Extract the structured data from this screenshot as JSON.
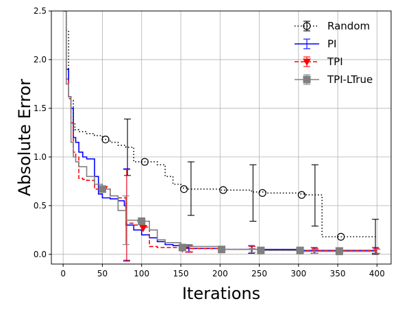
{
  "chart_data": {
    "type": "line",
    "xlabel": "Iterations",
    "ylabel": "Absolute Error",
    "xlim": [
      -15,
      418
    ],
    "ylim": [
      -0.1,
      2.5
    ],
    "xticks": [
      0,
      50,
      100,
      150,
      200,
      250,
      300,
      350,
      400
    ],
    "xtick_labels": [
      "0",
      "50",
      "100",
      "150",
      "200",
      "250",
      "300",
      "350",
      "400"
    ],
    "yticks": [
      0.0,
      0.5,
      1.0,
      1.5,
      2.0,
      2.5
    ],
    "ytick_labels": [
      "0.0",
      "0.5",
      "1.0",
      "1.5",
      "2.0",
      "2.5"
    ],
    "grid": true,
    "legend_position": "top-right",
    "series": [
      {
        "name": "Random",
        "color": "#000000",
        "line_style": "dotted",
        "marker": "circle-open",
        "x": [
          1,
          4,
          7,
          10,
          13,
          15,
          20,
          30,
          40,
          50,
          60,
          70,
          80,
          90,
          100,
          110,
          120,
          130,
          140,
          150,
          160,
          180,
          200,
          220,
          240,
          260,
          280,
          300,
          310,
          320,
          330,
          340,
          350,
          360,
          370,
          380,
          390,
          400
        ],
        "y": [
          2.5,
          2.3,
          1.62,
          1.58,
          1.35,
          1.28,
          1.26,
          1.24,
          1.22,
          1.18,
          1.15,
          1.12,
          1.1,
          0.95,
          0.95,
          0.95,
          0.92,
          0.8,
          0.72,
          0.68,
          0.67,
          0.67,
          0.66,
          0.66,
          0.64,
          0.63,
          0.63,
          0.62,
          0.61,
          0.61,
          0.18,
          0.18,
          0.18,
          0.18,
          0.18,
          0.18,
          0.18,
          0.18
        ],
        "marker_points": [
          {
            "x": 54,
            "y": 1.18
          },
          {
            "x": 104,
            "y": 0.95
          },
          {
            "x": 154,
            "y": 0.67
          },
          {
            "x": 204,
            "y": 0.66
          },
          {
            "x": 254,
            "y": 0.63
          },
          {
            "x": 304,
            "y": 0.61
          },
          {
            "x": 354,
            "y": 0.18
          }
        ],
        "error_bars": [
          {
            "x": 82,
            "center": 1.1,
            "low": 0.81,
            "high": 1.39
          },
          {
            "x": 163,
            "center": 0.67,
            "low": 0.4,
            "high": 0.95
          },
          {
            "x": 242,
            "center": 0.63,
            "low": 0.34,
            "high": 0.92
          },
          {
            "x": 321,
            "center": 0.61,
            "low": 0.29,
            "high": 0.92
          },
          {
            "x": 398,
            "center": 0.18,
            "low": 0.0,
            "high": 0.36
          }
        ]
      },
      {
        "name": "PI",
        "color": "#0000ff",
        "line_style": "solid",
        "marker": "none",
        "x": [
          1,
          4,
          7,
          10,
          13,
          16,
          20,
          25,
          30,
          40,
          45,
          50,
          60,
          70,
          78,
          80,
          90,
          100,
          110,
          120,
          130,
          140,
          150,
          160,
          200,
          250,
          300,
          350,
          400
        ],
        "y": [
          2.5,
          1.9,
          1.62,
          1.5,
          1.2,
          1.15,
          1.05,
          1.0,
          0.98,
          0.8,
          0.62,
          0.58,
          0.57,
          0.55,
          0.5,
          0.3,
          0.25,
          0.2,
          0.17,
          0.13,
          0.1,
          0.09,
          0.07,
          0.06,
          0.05,
          0.05,
          0.04,
          0.04,
          0.04
        ],
        "marker_points": [],
        "error_bars": [
          {
            "x": 81,
            "center": 0.5,
            "low": -0.07,
            "high": 0.88
          },
          {
            "x": 160,
            "center": 0.06,
            "low": 0.02,
            "high": 0.1
          },
          {
            "x": 240,
            "center": 0.05,
            "low": 0.01,
            "high": 0.09
          },
          {
            "x": 320,
            "center": 0.04,
            "low": 0.01,
            "high": 0.07
          },
          {
            "x": 398,
            "center": 0.04,
            "low": 0.01,
            "high": 0.07
          }
        ]
      },
      {
        "name": "TPI",
        "color": "#ff0000",
        "line_style": "dashed",
        "marker": "triangle-down",
        "x": [
          1,
          4,
          7,
          10,
          13,
          16,
          20,
          25,
          30,
          40,
          50,
          60,
          70,
          80,
          90,
          100,
          110,
          120,
          130,
          150,
          200,
          250,
          300,
          350,
          400
        ],
        "y": [
          2.5,
          1.8,
          1.6,
          1.35,
          1.05,
          1.0,
          0.78,
          0.77,
          0.76,
          0.67,
          0.67,
          0.6,
          0.58,
          0.32,
          0.3,
          0.28,
          0.08,
          0.07,
          0.07,
          0.06,
          0.05,
          0.04,
          0.04,
          0.04,
          0.04
        ],
        "marker_points": [
          {
            "x": 52,
            "y": 0.67
          },
          {
            "x": 102,
            "y": 0.27
          },
          {
            "x": 152,
            "y": 0.06
          },
          {
            "x": 202,
            "y": 0.05
          },
          {
            "x": 252,
            "y": 0.04
          },
          {
            "x": 302,
            "y": 0.04
          },
          {
            "x": 352,
            "y": 0.04
          }
        ],
        "error_bars": [
          {
            "x": 81,
            "center": 0.33,
            "low": -0.06,
            "high": 0.87
          },
          {
            "x": 161,
            "center": 0.06,
            "low": 0.02,
            "high": 0.09
          },
          {
            "x": 241,
            "center": 0.05,
            "low": 0.02,
            "high": 0.08
          },
          {
            "x": 321,
            "center": 0.04,
            "low": 0.01,
            "high": 0.06
          },
          {
            "x": 399,
            "center": 0.04,
            "low": 0.01,
            "high": 0.06
          }
        ]
      },
      {
        "name": "TPI-LTrue",
        "color": "#808080",
        "line_style": "solid",
        "marker": "square",
        "x": [
          1,
          4,
          7,
          10,
          13,
          16,
          20,
          30,
          40,
          50,
          60,
          70,
          80,
          90,
          95,
          100,
          110,
          120,
          130,
          150,
          200,
          250,
          300,
          350,
          400
        ],
        "y": [
          2.5,
          1.75,
          1.62,
          1.15,
          1.0,
          0.95,
          0.9,
          0.8,
          0.72,
          0.67,
          0.6,
          0.45,
          0.35,
          0.35,
          0.34,
          0.34,
          0.25,
          0.15,
          0.12,
          0.08,
          0.05,
          0.04,
          0.03,
          0.03,
          0.03
        ],
        "marker_points": [
          {
            "x": 50,
            "y": 0.67
          },
          {
            "x": 100,
            "y": 0.34
          },
          {
            "x": 152,
            "y": 0.07
          },
          {
            "x": 202,
            "y": 0.05
          },
          {
            "x": 252,
            "y": 0.04
          },
          {
            "x": 302,
            "y": 0.04
          },
          {
            "x": 352,
            "y": 0.03
          }
        ],
        "error_bars": [
          {
            "x": 80,
            "center": 0.35,
            "low": 0.1,
            "high": 0.6
          },
          {
            "x": 161,
            "center": 0.07,
            "low": 0.03,
            "high": 0.1
          },
          {
            "x": 241,
            "center": 0.04,
            "low": 0.02,
            "high": 0.06
          },
          {
            "x": 321,
            "center": 0.03,
            "low": 0.01,
            "high": 0.05
          },
          {
            "x": 400,
            "center": 0.03,
            "low": 0.01,
            "high": 0.05
          }
        ]
      }
    ]
  }
}
